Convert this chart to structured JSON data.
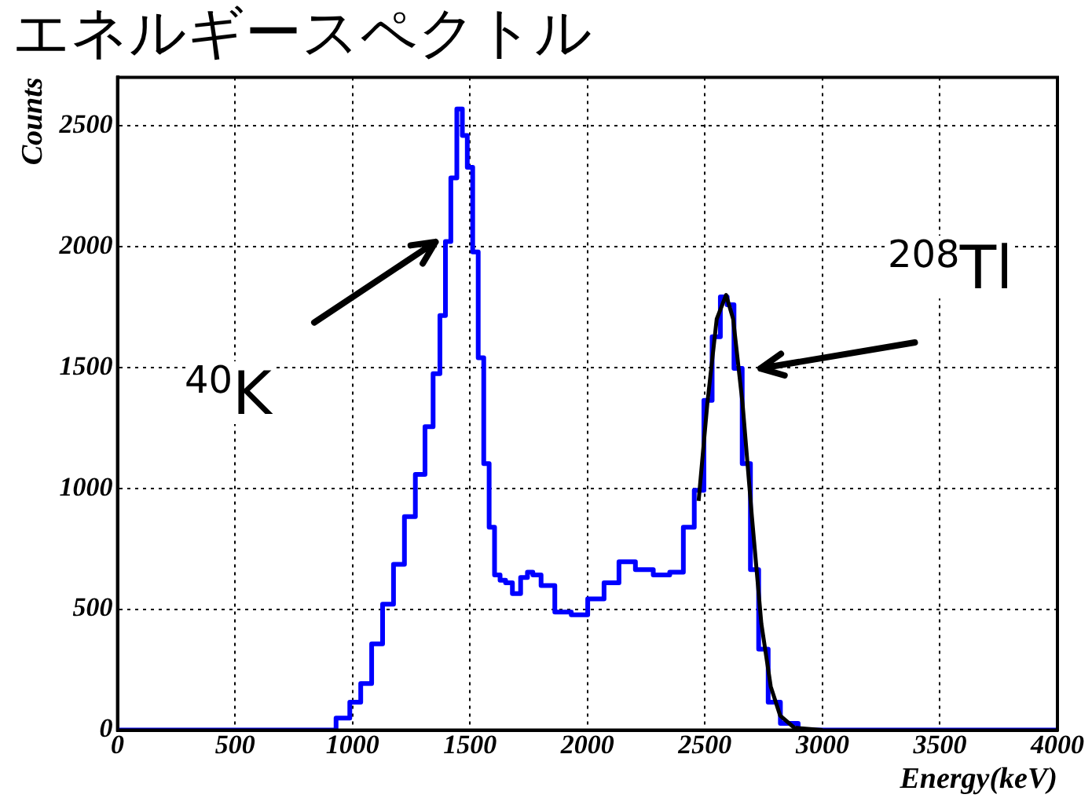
{
  "chart_data": {
    "type": "step",
    "title": "エネルギースペクトル",
    "xlabel": "Energy(keV)",
    "ylabel": "Counts",
    "xlim": [
      0,
      4000
    ],
    "xticks": [
      0,
      500,
      1000,
      1500,
      2000,
      2500,
      3000,
      3500,
      4000
    ],
    "ylim": [
      0,
      2700
    ],
    "yticks": [
      0,
      500,
      1000,
      1500,
      2000,
      2500
    ],
    "grid": true,
    "legend": false,
    "series": [
      {
        "color": "#0000ff",
        "x": [
          0,
          500,
          895,
          965,
          1012,
          1058,
          1105,
          1151,
          1198,
          1244,
          1291,
          1326,
          1360,
          1384,
          1407,
          1430,
          1458,
          1477,
          1500,
          1523,
          1547,
          1570,
          1593,
          1616,
          1640,
          1663,
          1698,
          1733,
          1756,
          1779,
          1826,
          1896,
          1966,
          2036,
          2105,
          2163,
          2245,
          2315,
          2385,
          2431,
          2478,
          2513,
          2548,
          2583,
          2606,
          2641,
          2676,
          2711,
          2746,
          2792,
          2850,
          2943,
          3500,
          4000
        ],
        "values": [
          0,
          0,
          0,
          50,
          116,
          193,
          357,
          521,
          686,
          883,
          1058,
          1255,
          1474,
          1715,
          2021,
          2284,
          2569,
          2459,
          2328,
          1978,
          1540,
          1102,
          839,
          642,
          620,
          609,
          565,
          631,
          653,
          642,
          598,
          488,
          477,
          543,
          609,
          696,
          664,
          642,
          653,
          839,
          992,
          1364,
          1627,
          1792,
          1759,
          1496,
          1102,
          664,
          335,
          116,
          28,
          0,
          0,
          0
        ]
      },
      {
        "type": "line",
        "color": "#000000",
        "x": [
          2473,
          2510,
          2550,
          2590,
          2620,
          2660,
          2700,
          2740,
          2780,
          2820,
          2880,
          3000
        ],
        "values": [
          948,
          1350,
          1700,
          1800,
          1700,
          1350,
          880,
          440,
          180,
          60,
          10,
          0
        ]
      }
    ],
    "annotations": [
      {
        "text": "$^{40}$K",
        "x": 1407,
        "y": 2021
      },
      {
        "text": "$^{208}$Tl",
        "x": 2641,
        "y": 1496
      }
    ]
  }
}
